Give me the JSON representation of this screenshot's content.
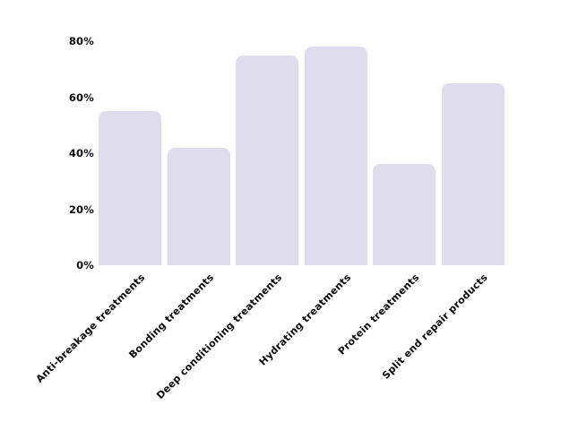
{
  "chart_data": {
    "type": "bar",
    "title": "",
    "xlabel": "",
    "ylabel": "",
    "categories": [
      "Anti-breakage treatments",
      "Bonding treatments",
      "Deep conditioning treatments",
      "Hydrating treatments",
      "Protein treatments",
      "Split end repair products"
    ],
    "values": [
      55,
      42,
      75,
      78,
      36,
      65
    ],
    "unit": "%",
    "yticks": [
      80,
      60,
      40,
      20,
      0
    ],
    "ytick_labels": [
      "80%",
      "60%",
      "40%",
      "20%",
      "0%"
    ],
    "ylim": [
      0,
      80
    ],
    "grid": false,
    "legend": null,
    "colors": {
      "bar": "#dfdced",
      "text": "#0b0b0d",
      "background": "#ffffff"
    }
  }
}
